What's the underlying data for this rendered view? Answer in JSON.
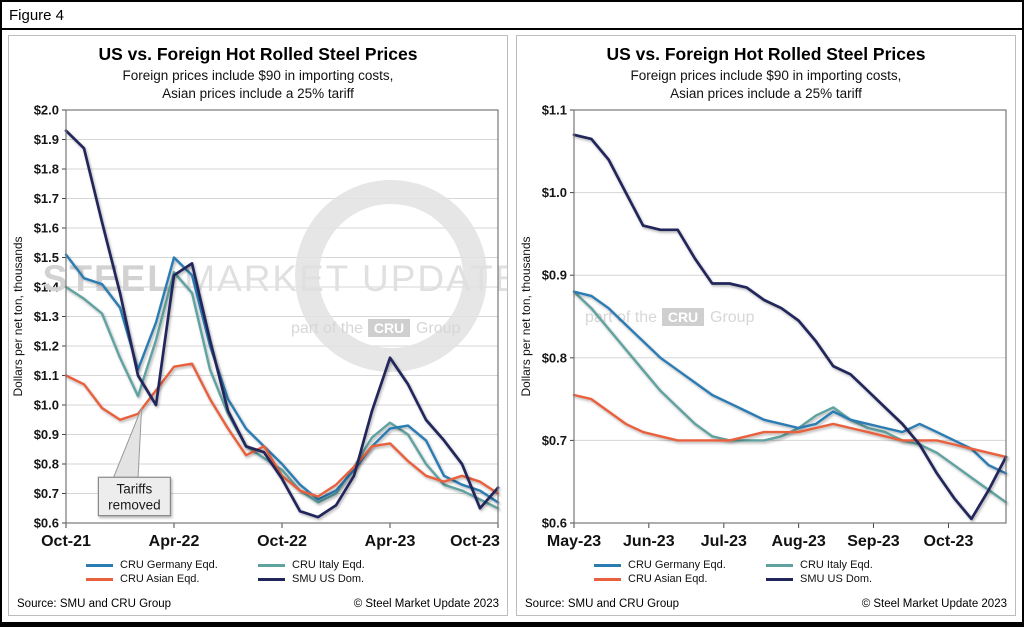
{
  "figure_label": "Figure 4",
  "series_meta": [
    {
      "name": "CRU Germany Eqd.",
      "color": "#2b7cb3"
    },
    {
      "name": "CRU Italy Eqd.",
      "color": "#5fa2a0"
    },
    {
      "name": "CRU Asian Eqd.",
      "color": "#e8603c"
    },
    {
      "name": "SMU US Dom.",
      "color": "#20265a"
    }
  ],
  "panel_common": {
    "title": "US vs. Foreign Hot Rolled Steel Prices",
    "subtitle1": "Foreign prices include $90 in importing costs,",
    "subtitle2": "Asian prices include a 25% tariff",
    "source": "Source: SMU and CRU Group",
    "copyright": "© Steel Market Update 2023"
  },
  "watermark": {
    "brand_bold": "STEEL",
    "brand_light": " MARKET UPDATE",
    "tagline_pre": "part of the",
    "tagline_box": "CRU",
    "tagline_post": "Group"
  },
  "chart_data": [
    {
      "type": "line",
      "title": "US vs. Foreign Hot Rolled Steel Prices",
      "subtitle": "Foreign prices include $90 in importing costs, Asian prices include a 25% tariff",
      "ylabel": "Dollars per net ton, thousands",
      "ylim": [
        0.6,
        2.0
      ],
      "ytick_step": 0.1,
      "ytick_prefix": "$",
      "grid": true,
      "legend_position": "bottom",
      "x_frequency": "monthly",
      "watermark_style": "full",
      "xticks": [
        {
          "pos": 0,
          "label": "Oct-21"
        },
        {
          "pos": 6,
          "label": "Apr-22"
        },
        {
          "pos": 12,
          "label": "Oct-22"
        },
        {
          "pos": 18,
          "label": "Apr-23"
        },
        {
          "pos": 24,
          "label": "Oct-23"
        }
      ],
      "annotation": {
        "lines": [
          "Tariffs",
          "removed"
        ],
        "box_x": [
          1.8,
          5.8
        ],
        "box_y": [
          0.625,
          0.755
        ],
        "base_x": [
          2.6,
          4.0
        ],
        "tip": [
          4.2,
          0.99
        ]
      },
      "series": [
        {
          "name": "CRU Italy Eqd.",
          "color": "#5fa2a0",
          "width": 2.4,
          "values": [
            1.4,
            1.36,
            1.31,
            1.16,
            1.03,
            1.22,
            1.45,
            1.38,
            1.12,
            0.97,
            0.86,
            0.82,
            0.78,
            0.71,
            0.67,
            0.7,
            0.79,
            0.89,
            0.94,
            0.9,
            0.8,
            0.73,
            0.71,
            0.68,
            0.65
          ]
        },
        {
          "name": "CRU Germany Eqd.",
          "color": "#2b7cb3",
          "width": 2.4,
          "values": [
            1.51,
            1.43,
            1.41,
            1.33,
            1.12,
            1.28,
            1.5,
            1.44,
            1.2,
            1.02,
            0.92,
            0.86,
            0.8,
            0.73,
            0.68,
            0.71,
            0.78,
            0.86,
            0.92,
            0.93,
            0.88,
            0.76,
            0.73,
            0.71,
            0.67
          ]
        },
        {
          "name": "CRU Asian Eqd.",
          "color": "#e8603c",
          "width": 2.4,
          "values": [
            1.1,
            1.07,
            0.99,
            0.95,
            0.97,
            1.05,
            1.13,
            1.14,
            1.02,
            0.92,
            0.83,
            0.86,
            0.76,
            0.71,
            0.69,
            0.73,
            0.79,
            0.86,
            0.87,
            0.81,
            0.76,
            0.74,
            0.76,
            0.74,
            0.7
          ]
        },
        {
          "name": "SMU US Dom.",
          "color": "#20265a",
          "width": 2.7,
          "values": [
            1.93,
            1.87,
            1.62,
            1.38,
            1.1,
            1.0,
            1.44,
            1.48,
            1.22,
            0.98,
            0.86,
            0.84,
            0.75,
            0.64,
            0.62,
            0.66,
            0.76,
            0.98,
            1.16,
            1.07,
            0.95,
            0.88,
            0.8,
            0.65,
            0.72
          ]
        }
      ]
    },
    {
      "type": "line",
      "title": "US vs. Foreign Hot Rolled Steel Prices",
      "subtitle": "Foreign prices include $90 in importing costs, Asian prices include a 25% tariff",
      "ylabel": "Dollars per net ton, thousands",
      "ylim": [
        0.6,
        1.1
      ],
      "ytick_step": 0.1,
      "ytick_prefix": "$",
      "grid": true,
      "legend_position": "bottom",
      "x_frequency": "weekly",
      "watermark_style": "partial",
      "xticks": [
        {
          "pos": 0,
          "label": "May-23"
        },
        {
          "pos": 4.33,
          "label": "Jun-23"
        },
        {
          "pos": 8.67,
          "label": "Jul-23"
        },
        {
          "pos": 13,
          "label": "Aug-23"
        },
        {
          "pos": 17.33,
          "label": "Sep-23"
        },
        {
          "pos": 21.67,
          "label": "Oct-23"
        }
      ],
      "series": [
        {
          "name": "CRU Italy Eqd.",
          "color": "#5fa2a0",
          "width": 2.4,
          "values": [
            0.88,
            0.86,
            0.835,
            0.81,
            0.785,
            0.76,
            0.74,
            0.72,
            0.705,
            0.7,
            0.7,
            0.7,
            0.705,
            0.715,
            0.73,
            0.74,
            0.725,
            0.715,
            0.71,
            0.7,
            0.695,
            0.685,
            0.67,
            0.655,
            0.64,
            0.625
          ]
        },
        {
          "name": "CRU Germany Eqd.",
          "color": "#2b7cb3",
          "width": 2.4,
          "values": [
            0.88,
            0.875,
            0.86,
            0.84,
            0.82,
            0.8,
            0.785,
            0.77,
            0.755,
            0.745,
            0.735,
            0.725,
            0.72,
            0.715,
            0.72,
            0.735,
            0.725,
            0.72,
            0.715,
            0.71,
            0.72,
            0.71,
            0.7,
            0.69,
            0.67,
            0.66
          ]
        },
        {
          "name": "CRU Asian Eqd.",
          "color": "#e8603c",
          "width": 2.4,
          "values": [
            0.755,
            0.75,
            0.735,
            0.72,
            0.71,
            0.705,
            0.7,
            0.7,
            0.7,
            0.7,
            0.705,
            0.71,
            0.71,
            0.71,
            0.715,
            0.72,
            0.715,
            0.71,
            0.705,
            0.7,
            0.7,
            0.7,
            0.695,
            0.69,
            0.685,
            0.68
          ]
        },
        {
          "name": "SMU US Dom.",
          "color": "#20265a",
          "width": 2.7,
          "values": [
            1.07,
            1.065,
            1.04,
            1.0,
            0.96,
            0.955,
            0.955,
            0.92,
            0.89,
            0.89,
            0.885,
            0.87,
            0.86,
            0.845,
            0.82,
            0.79,
            0.78,
            0.76,
            0.74,
            0.72,
            0.695,
            0.66,
            0.63,
            0.605,
            0.64,
            0.68
          ]
        }
      ]
    }
  ]
}
